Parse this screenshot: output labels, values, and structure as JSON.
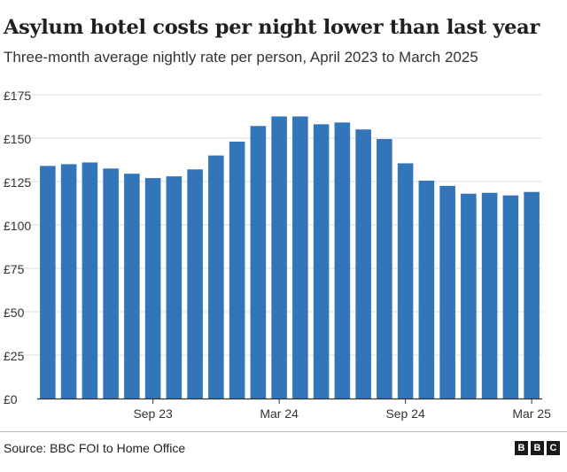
{
  "header": {
    "title": "Asylum hotel costs per night lower than last year",
    "subtitle": "Three-month average nightly rate per person, April 2023 to March 2025"
  },
  "footer": {
    "source": "Source: BBC FOI to Home Office",
    "logo_letters": [
      "B",
      "B",
      "C"
    ]
  },
  "colors": {
    "bar": "#3275b8",
    "gridline": "#dddddd",
    "axis": "#333333"
  },
  "chart_data": {
    "type": "bar",
    "title": "Asylum hotel costs per night lower than last year",
    "subtitle": "Three-month average nightly rate per person, April 2023 to March 2025",
    "categories": [
      "Apr 23",
      "May 23",
      "Jun 23",
      "Jul 23",
      "Aug 23",
      "Sep 23",
      "Oct 23",
      "Nov 23",
      "Dec 23",
      "Jan 24",
      "Feb 24",
      "Mar 24",
      "Apr 24",
      "May 24",
      "Jun 24",
      "Jul 24",
      "Aug 24",
      "Sep 24",
      "Oct 24",
      "Nov 24",
      "Dec 24",
      "Jan 25",
      "Feb 25",
      "Mar 25"
    ],
    "values": [
      134,
      135,
      136,
      132.5,
      129.5,
      127,
      128,
      132,
      140,
      148,
      157,
      162.5,
      162.5,
      158,
      159,
      155,
      149.5,
      135.5,
      125.5,
      122.5,
      118,
      118.5,
      117,
      119
    ],
    "x_tick_labels": [
      {
        "category": "Sep 23",
        "label": "Sep 23"
      },
      {
        "category": "Mar 24",
        "label": "Mar 24"
      },
      {
        "category": "Sep 24",
        "label": "Sep 24"
      },
      {
        "category": "Mar 25",
        "label": "Mar 25"
      }
    ],
    "y_ticks": [
      0,
      25,
      50,
      75,
      100,
      125,
      150,
      175
    ],
    "y_tick_labels": [
      "£0",
      "£25",
      "£50",
      "£75",
      "£100",
      "£125",
      "£150",
      "£175"
    ],
    "ylim": [
      0,
      175
    ],
    "xlabel": "",
    "ylabel": "",
    "grid": true,
    "legend": "none"
  }
}
